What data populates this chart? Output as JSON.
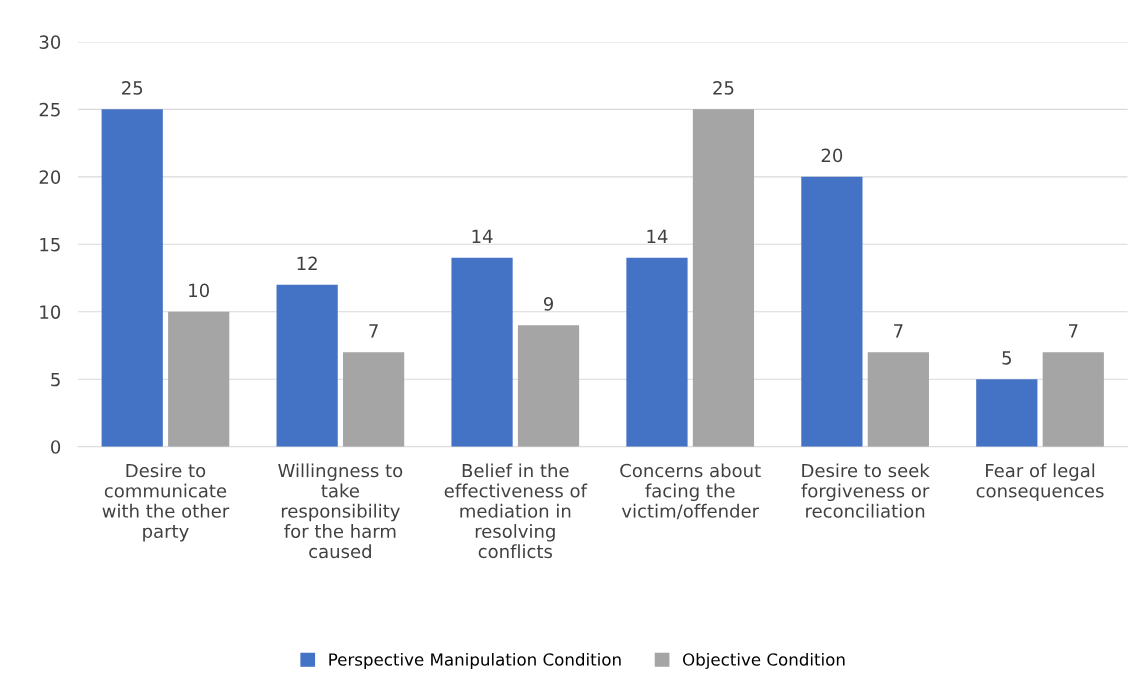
{
  "chart_data": {
    "type": "bar",
    "categories": [
      "Desire to\ncommunicate\nwith the other\nparty",
      "Willingness to\ntake\nresponsibility\nfor the harm\ncaused",
      "Belief in the\neffectiveness of\nmediation in\nresolving\nconflicts",
      "Concerns about\nfacing the\nvictim/offender",
      "Desire to seek\nforgiveness or\nreconciliation",
      "Fear of legal\nconsequences"
    ],
    "series": [
      {
        "name": "Perspective Manipulation Condition",
        "color": "#4472c4",
        "values": [
          25,
          12,
          14,
          14,
          20,
          5
        ]
      },
      {
        "name": "Objective Condition",
        "color": "#a5a5a5",
        "values": [
          10,
          7,
          9,
          25,
          7,
          7
        ]
      }
    ],
    "ylim": [
      0,
      30
    ],
    "yticks": [
      0,
      5,
      10,
      15,
      20,
      25,
      30
    ],
    "grid": "y",
    "legend": "bottom",
    "data_labels": true
  }
}
